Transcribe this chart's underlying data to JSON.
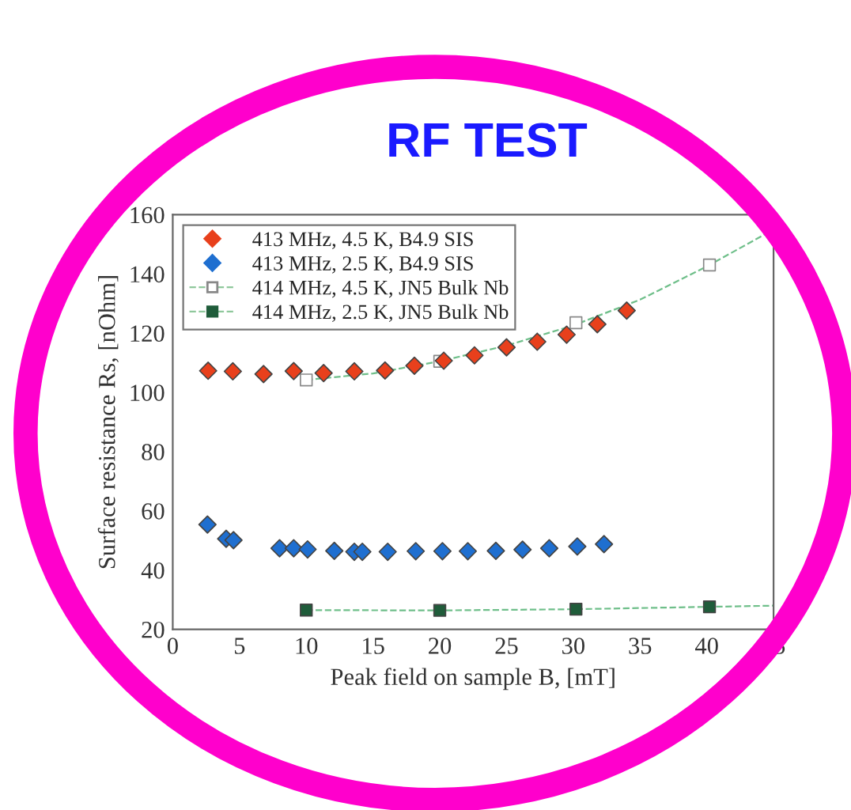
{
  "chart_data": {
    "type": "scatter",
    "title": "RF TEST",
    "xlabel": "Peak field on sample B, [mT]",
    "ylabel": "Surface resistance Rs, [nOhm]",
    "xlim": [
      0,
      45
    ],
    "xticks": [
      0,
      5,
      10,
      15,
      20,
      25,
      30,
      35,
      40,
      45
    ],
    "ylim": [
      20,
      160
    ],
    "yticks": [
      20,
      40,
      60,
      80,
      100,
      120,
      140,
      160
    ],
    "grid": false,
    "legend": "top left",
    "series": [
      {
        "name": "413 MHz, 4.5 K, B4.9 SIS",
        "color": "#e8401c",
        "marker": "diamond",
        "x": [
          2.65,
          4.5,
          6.8,
          9.06,
          11.3,
          13.6,
          15.9,
          18.1,
          20.3,
          22.6,
          25.0,
          27.3,
          29.5,
          31.8,
          34.0
        ],
        "values": [
          107.3,
          107.1,
          106.2,
          107.2,
          106.5,
          107.1,
          107.4,
          109.0,
          110.7,
          112.5,
          115.2,
          117.1,
          119.5,
          123.0,
          127.6
        ]
      },
      {
        "name": "413 MHz, 2.5 K, B4.9 SIS",
        "color": "#1f6fd0",
        "marker": "diamond",
        "x": [
          2.6,
          4.0,
          4.55,
          8.0,
          9.06,
          10.1,
          12.1,
          13.6,
          14.2,
          16.1,
          18.2,
          20.2,
          22.1,
          24.2,
          26.2,
          28.2,
          30.3,
          32.3
        ],
        "values": [
          55.4,
          50.6,
          50.1,
          47.4,
          47.4,
          47.0,
          46.5,
          46.2,
          46.2,
          46.2,
          46.4,
          46.4,
          46.4,
          46.5,
          46.9,
          47.4,
          48.0,
          48.8
        ]
      },
      {
        "name": "414 MHz, 4.5 K, JN5 Bulk Nb",
        "color": "#ffffff",
        "marker": "square",
        "line_style": "dashed",
        "x": [
          10,
          20,
          30.2,
          40.2
        ],
        "values": [
          104.2,
          110.5,
          123.5,
          143.0
        ]
      },
      {
        "name": "414 MHz, 2.5 K, JN5 Bulk Nb",
        "color": "#1f5c3a",
        "marker": "square",
        "line_style": "dashed",
        "x": [
          10,
          20,
          30.2,
          40.2
        ],
        "values": [
          26.5,
          26.4,
          26.8,
          27.6
        ]
      },
      {
        "type": "line",
        "color": "#6fbf8a",
        "line_style": "dashed",
        "x": [
          10,
          15,
          20,
          25,
          30,
          35,
          40,
          45
        ],
        "values": [
          104.2,
          106.4,
          110.5,
          115.8,
          122.6,
          131.3,
          142.5,
          155.0
        ]
      },
      {
        "type": "line",
        "color": "#6fbf8a",
        "line_style": "dashed",
        "x": [
          10,
          20,
          30,
          40,
          45
        ],
        "values": [
          26.5,
          26.4,
          26.8,
          27.6,
          28.0
        ]
      }
    ]
  }
}
